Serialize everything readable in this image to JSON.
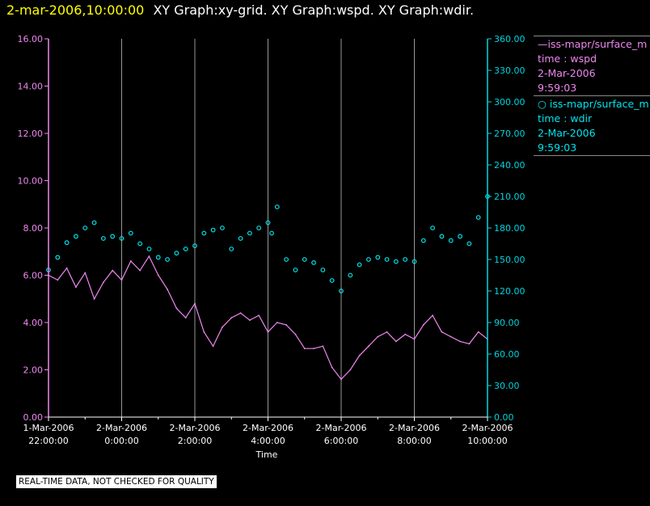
{
  "header": {
    "date": "2-mar-2006,10:00:00",
    "graphs": "XY Graph:xy-grid.  XY Graph:wspd.  XY Graph:wdir."
  },
  "colors": {
    "wspd": "#ee88ee",
    "wdir": "#00e5ee",
    "left_axis": "#ee88ee",
    "right_axis": "#00d5dd",
    "grid": "#999999"
  },
  "legend": {
    "wspd": {
      "name": "iss-mapr/surface_m",
      "var": "time : wspd",
      "date": "2-Mar-2006",
      "time": "9:59:03"
    },
    "wdir": {
      "name": "iss-mapr/surface_m",
      "var": "time : wdir",
      "date": "2-Mar-2006",
      "time": "9:59:03"
    }
  },
  "disclaimer": "REAL-TIME DATA, NOT CHECKED FOR QUALITY",
  "chart_data": {
    "type": "line",
    "xlabel": "Time",
    "x_ticks": [
      [
        "1-Mar-2006",
        "22:00:00"
      ],
      [
        "2-Mar-2006",
        "0:00:00"
      ],
      [
        "2-Mar-2006",
        "2:00:00"
      ],
      [
        "2-Mar-2006",
        "4:00:00"
      ],
      [
        "2-Mar-2006",
        "6:00:00"
      ],
      [
        "2-Mar-2006",
        "8:00:00"
      ],
      [
        "2-Mar-2006",
        "10:00:00"
      ]
    ],
    "xlim_hours": [
      -2,
      10
    ],
    "y_left": {
      "lim": [
        0,
        16
      ],
      "ticks": [
        "0.00",
        "2.00",
        "4.00",
        "6.00",
        "8.00",
        "10.00",
        "12.00",
        "14.00",
        "16.00"
      ]
    },
    "y_right": {
      "lim": [
        0,
        360
      ],
      "ticks": [
        "0.00",
        "30.00",
        "60.00",
        "90.00",
        "120.00",
        "150.00",
        "180.00",
        "210.00",
        "240.00",
        "270.00",
        "300.00",
        "330.00",
        "360.00"
      ]
    },
    "grid": "vertical",
    "series": [
      {
        "var": "wspd",
        "style": "line",
        "axis": "left",
        "x": [
          -2.0,
          -1.75,
          -1.5,
          -1.25,
          -1.0,
          -0.75,
          -0.5,
          -0.25,
          0.0,
          0.25,
          0.5,
          0.75,
          1.0,
          1.25,
          1.5,
          1.75,
          2.0,
          2.25,
          2.5,
          2.75,
          3.0,
          3.25,
          3.5,
          3.75,
          4.0,
          4.25,
          4.5,
          4.75,
          5.0,
          5.25,
          5.5,
          5.75,
          6.0,
          6.25,
          6.5,
          6.75,
          7.0,
          7.25,
          7.5,
          7.75,
          8.0,
          8.25,
          8.5,
          8.75,
          9.0,
          9.25,
          9.5,
          9.75,
          10.0
        ],
        "y": [
          6.0,
          5.8,
          6.3,
          5.5,
          6.1,
          5.0,
          5.7,
          6.2,
          5.8,
          6.6,
          6.2,
          6.8,
          6.0,
          5.4,
          4.6,
          4.2,
          4.8,
          3.6,
          3.0,
          3.8,
          4.2,
          4.4,
          4.1,
          4.3,
          3.6,
          4.0,
          3.9,
          3.5,
          2.9,
          2.9,
          3.0,
          2.1,
          1.6,
          2.0,
          2.6,
          3.0,
          3.4,
          3.6,
          3.2,
          3.5,
          3.3,
          3.9,
          4.3,
          3.6,
          3.4,
          3.2,
          3.1,
          3.6,
          3.3
        ]
      },
      {
        "var": "wdir",
        "style": "markers",
        "axis": "right",
        "x": [
          -2.0,
          -1.75,
          -1.5,
          -1.25,
          -1.0,
          -0.75,
          -0.5,
          -0.25,
          0.0,
          0.25,
          0.5,
          0.75,
          1.0,
          1.25,
          1.5,
          1.75,
          2.0,
          2.25,
          2.5,
          2.75,
          3.0,
          3.25,
          3.5,
          3.75,
          4.0,
          4.1,
          4.25,
          4.5,
          4.75,
          5.0,
          5.25,
          5.5,
          5.75,
          6.0,
          6.25,
          6.5,
          6.75,
          7.0,
          7.25,
          7.5,
          7.75,
          8.0,
          8.25,
          8.5,
          8.75,
          9.0,
          9.25,
          9.5,
          9.75,
          10.0
        ],
        "y": [
          140,
          152,
          166,
          172,
          180,
          185,
          170,
          172,
          170,
          175,
          165,
          160,
          152,
          150,
          156,
          160,
          163,
          175,
          178,
          180,
          160,
          170,
          175,
          180,
          185,
          175,
          200,
          150,
          140,
          150,
          147,
          140,
          130,
          120,
          135,
          145,
          150,
          152,
          150,
          148,
          150,
          148,
          168,
          180,
          172,
          168,
          172,
          165,
          190,
          210
        ]
      }
    ]
  }
}
